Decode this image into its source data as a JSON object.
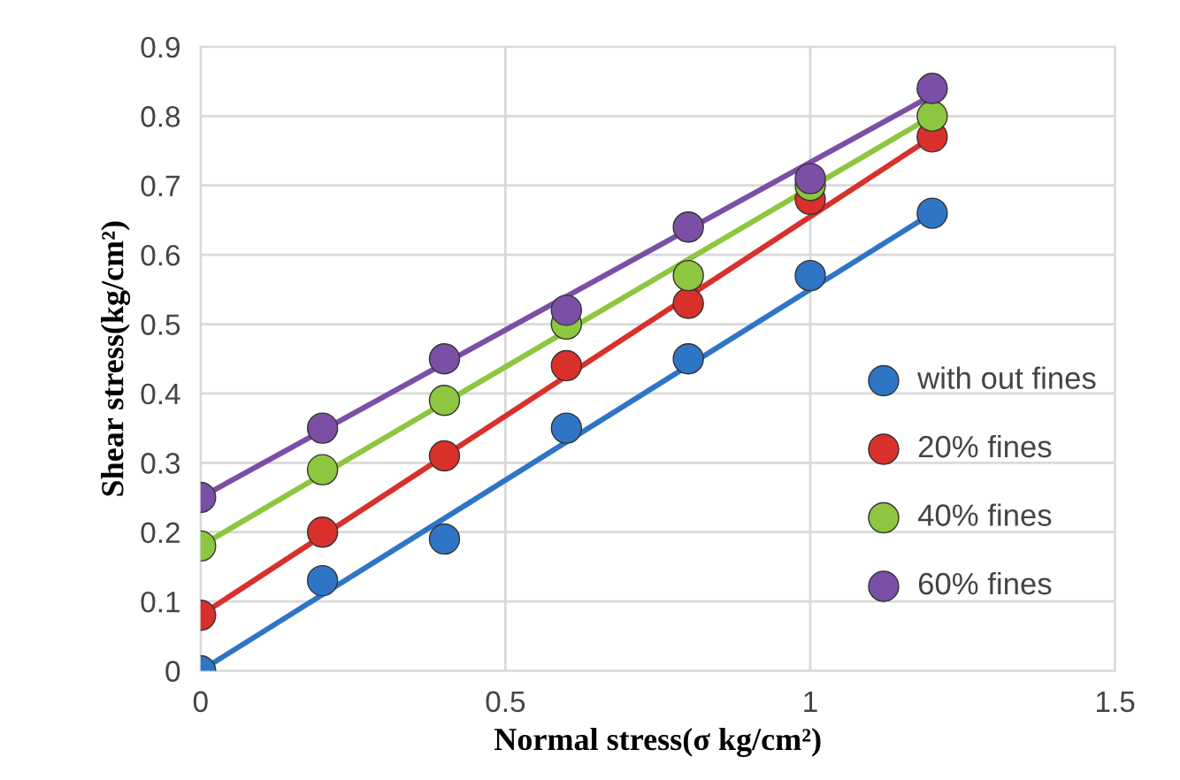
{
  "chart_data": {
    "type": "scatter",
    "xlabel": "Normal stress(σ kg/cm²)",
    "ylabel": "Shear stress(kg/cm²)",
    "xlim": [
      0,
      1.5
    ],
    "xticks": [
      0,
      0.5,
      1,
      1.5
    ],
    "ylim": [
      0,
      0.9
    ],
    "yticks": [
      0,
      0.1,
      0.2,
      0.3,
      0.4,
      0.5,
      0.6,
      0.7,
      0.8,
      0.9
    ],
    "grid": true,
    "legend": "right",
    "series": [
      {
        "name": "with out fines",
        "marker": "circle",
        "color": "#2e75c6",
        "x": [
          0,
          0.2,
          0.4,
          0.6,
          0.8,
          1.0,
          1.2
        ],
        "values": [
          0,
          0.13,
          0.19,
          0.35,
          0.45,
          0.57,
          0.66
        ]
      },
      {
        "name": "20% fines",
        "marker": "circle",
        "color": "#d9302c",
        "x": [
          0,
          0.2,
          0.4,
          0.6,
          0.8,
          1.0,
          1.2
        ],
        "values": [
          0.08,
          0.2,
          0.31,
          0.44,
          0.53,
          0.68,
          0.77
        ]
      },
      {
        "name": "40% fines",
        "marker": "circle",
        "color": "#8dc63f",
        "x": [
          0,
          0.2,
          0.4,
          0.6,
          0.8,
          1.0,
          1.2
        ],
        "values": [
          0.18,
          0.29,
          0.39,
          0.5,
          0.57,
          0.7,
          0.8
        ]
      },
      {
        "name": "60% fines",
        "marker": "circle",
        "color": "#7b4fa6",
        "x": [
          0,
          0.2,
          0.4,
          0.6,
          0.8,
          1.0,
          1.2
        ],
        "values": [
          0.25,
          0.35,
          0.45,
          0.52,
          0.64,
          0.71,
          0.84
        ]
      },
      {
        "type": "line",
        "marker": "none",
        "color": "#2e75c6",
        "x": [
          0,
          1.2
        ],
        "values": [
          0.0,
          0.66
        ]
      },
      {
        "type": "line",
        "marker": "none",
        "color": "#d9302c",
        "x": [
          0,
          1.2
        ],
        "values": [
          0.08,
          0.77
        ]
      },
      {
        "type": "line",
        "marker": "none",
        "color": "#8dc63f",
        "x": [
          0,
          1.2
        ],
        "values": [
          0.18,
          0.8
        ]
      },
      {
        "type": "line",
        "marker": "none",
        "color": "#7b4fa6",
        "x": [
          0,
          1.2
        ],
        "values": [
          0.25,
          0.83
        ]
      }
    ]
  }
}
